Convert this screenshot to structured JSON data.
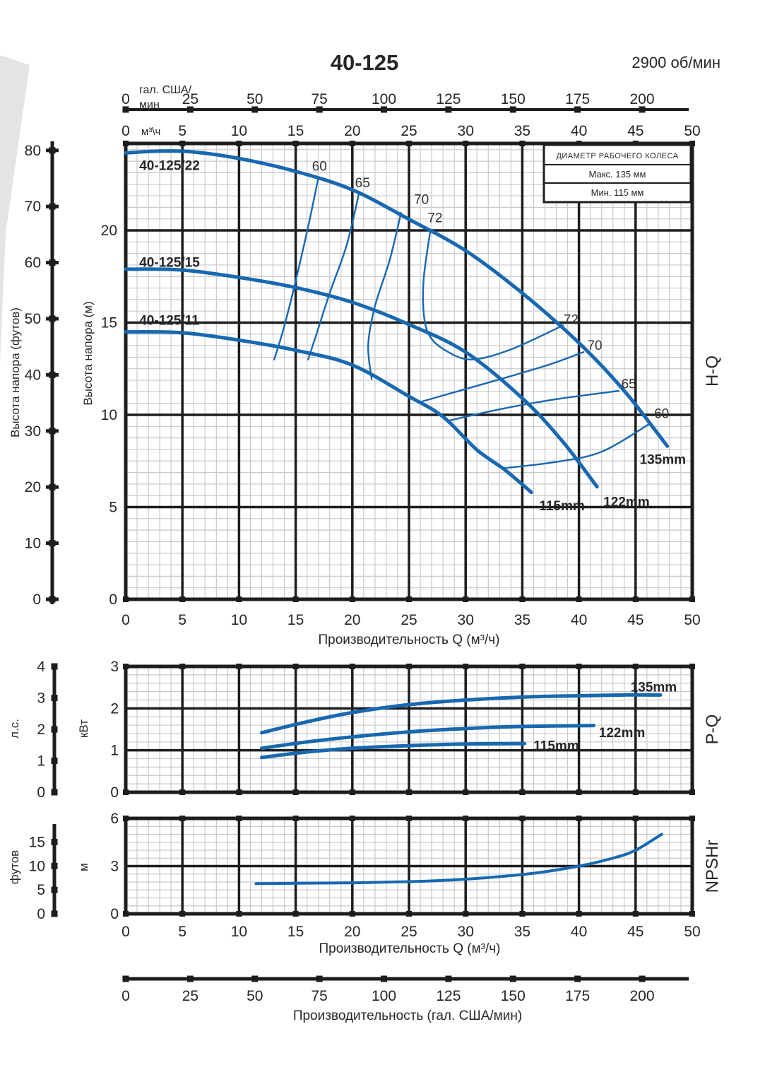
{
  "header": {
    "title": "40-125",
    "rpm": "2900 об/мин"
  },
  "impeller_box": {
    "title": "ДИАМЕТР РАБОЧЕГО КОЛЕСА",
    "max": "Макс. 135 мм",
    "min": "Мин. 115 мм"
  },
  "colors": {
    "curve_blue": "#1768b0",
    "ink": "#262626",
    "grid_minor": "#c9c9c9",
    "grid_major": "#1d1d1d",
    "wedge_gray": "#e4e4e6"
  },
  "labels": {
    "hq_right": "H-Q",
    "pq_right": "P-Q",
    "npsh_right": "NPSHr",
    "hq_feet": "Высота напора (футов)",
    "hq_m": "Высота напора (м)",
    "pq_hp": "л.с.",
    "pq_kw": "кВт",
    "npsh_feet": "футов",
    "npsh_m": "м",
    "q_axis_title": "Производительность Q (м³/ч)",
    "gal_axis_title": "Производительность (гал. США/мин)"
  },
  "axes": {
    "gal": {
      "unit_line1": "гал. США/",
      "unit_line2": "мин",
      "ticks": [
        0,
        25,
        50,
        75,
        100,
        125,
        150,
        175,
        200
      ]
    },
    "m3h_header": {
      "unit": "м³\\ч",
      "ticks": [
        0,
        5,
        10,
        15,
        20,
        25,
        30,
        35,
        40,
        45,
        50
      ]
    },
    "q_ticks": [
      0,
      5,
      10,
      15,
      20,
      25,
      30,
      35,
      40,
      45,
      50
    ],
    "hq_m_ticks": [
      0,
      5,
      10,
      15,
      20
    ],
    "hq_feet_ticks": [
      0,
      10,
      20,
      30,
      40,
      50,
      60,
      70,
      80
    ],
    "pq_kw_ticks": [
      0,
      1,
      2,
      3
    ],
    "pq_hp_ticks": [
      0,
      1,
      2,
      3,
      4
    ],
    "npsh_m_ticks": [
      0,
      3,
      6
    ],
    "npsh_feet_ticks": [
      0,
      5,
      10,
      15
    ]
  },
  "chart_data": [
    {
      "type": "line",
      "title": "H-Q",
      "xlabel": "Производительность Q (м³/ч)",
      "ylabel": "Высота напора (м)",
      "xlim": [
        0,
        50
      ],
      "ylim": [
        0,
        24.7
      ],
      "series": [
        {
          "name": "40-125/22 (135 мм)",
          "role": "pump-curve",
          "width": "thick",
          "points": [
            [
              0,
              24.2
            ],
            [
              3,
              24.3
            ],
            [
              6,
              24.25
            ],
            [
              10,
              23.9
            ],
            [
              15,
              23.2
            ],
            [
              20,
              22.2
            ],
            [
              25,
              20.6
            ],
            [
              30,
              18.9
            ],
            [
              35,
              16.6
            ],
            [
              40,
              13.9
            ],
            [
              44,
              11.3
            ],
            [
              47.8,
              8.3
            ]
          ]
        },
        {
          "name": "40-125/15 (122 мм)",
          "role": "pump-curve",
          "width": "thick",
          "points": [
            [
              0,
              17.9
            ],
            [
              5,
              17.85
            ],
            [
              10,
              17.45
            ],
            [
              15,
              16.9
            ],
            [
              20,
              16.1
            ],
            [
              25,
              14.9
            ],
            [
              30,
              13.4
            ],
            [
              35,
              10.9
            ],
            [
              38.5,
              8.6
            ],
            [
              41.6,
              6.1
            ]
          ]
        },
        {
          "name": "40-125/11 (115 мм)",
          "role": "pump-curve",
          "width": "thick",
          "points": [
            [
              0,
              14.5
            ],
            [
              5,
              14.45
            ],
            [
              10,
              14.05
            ],
            [
              15,
              13.5
            ],
            [
              20,
              12.7
            ],
            [
              25,
              11.0
            ],
            [
              28,
              9.9
            ],
            [
              31,
              8.1
            ],
            [
              33.5,
              7.0
            ],
            [
              35.8,
              5.8
            ]
          ]
        },
        {
          "name": "КПД 60% левая ветвь",
          "role": "efficiency-line",
          "width": "thin",
          "points": [
            [
              17.0,
              22.85
            ],
            [
              16.1,
              20.2
            ],
            [
              14.9,
              17.0
            ],
            [
              13.9,
              14.6
            ],
            [
              13.1,
              13.0
            ]
          ]
        },
        {
          "name": "КПД 65% левая ветвь",
          "role": "efficiency-line",
          "width": "thin",
          "points": [
            [
              20.6,
              22.05
            ],
            [
              19.5,
              19.2
            ],
            [
              18.0,
              16.6
            ],
            [
              16.9,
              14.5
            ],
            [
              16.1,
              13.0
            ]
          ]
        },
        {
          "name": "КПД 70% левая ветвь",
          "role": "efficiency-line",
          "width": "thin",
          "points": [
            [
              24.3,
              20.95
            ],
            [
              23.3,
              18.4
            ],
            [
              22.0,
              15.9
            ],
            [
              21.4,
              13.8
            ],
            [
              21.7,
              11.95
            ]
          ]
        },
        {
          "name": "КПД 72% контур",
          "role": "efficiency-line",
          "width": "thin",
          "points": [
            [
              26.9,
              20.05
            ],
            [
              26.3,
              17.4
            ],
            [
              26.3,
              15.5
            ],
            [
              26.8,
              14.3
            ],
            [
              28.2,
              13.5
            ],
            [
              30.5,
              13.0
            ],
            [
              34,
              13.55
            ],
            [
              38.6,
              14.85
            ]
          ]
        },
        {
          "name": "КПД 70% правая ветвь",
          "role": "efficiency-line",
          "width": "thin",
          "points": [
            [
              26.0,
              10.7
            ],
            [
              30,
              11.4
            ],
            [
              34,
              12.1
            ],
            [
              37.5,
              12.75
            ],
            [
              40.4,
              13.4
            ]
          ]
        },
        {
          "name": "КПД 65% правая ветвь",
          "role": "efficiency-line",
          "width": "thin",
          "points": [
            [
              28.6,
              9.7
            ],
            [
              33,
              10.3
            ],
            [
              38,
              10.85
            ],
            [
              43.5,
              11.3
            ]
          ]
        },
        {
          "name": "КПД 60% правая ветвь",
          "role": "efficiency-line",
          "width": "thin",
          "points": [
            [
              33.3,
              7.1
            ],
            [
              38,
              7.45
            ],
            [
              42,
              8.0
            ],
            [
              46.2,
              9.5
            ]
          ]
        }
      ],
      "annotations": [
        {
          "text": "40-125/22",
          "x": 1.2,
          "y": 23.55,
          "anchor": "start",
          "bold": true
        },
        {
          "text": "40-125/15",
          "x": 1.2,
          "y": 18.3,
          "anchor": "start",
          "bold": true
        },
        {
          "text": "40-125/11",
          "x": 1.2,
          "y": 15.15,
          "anchor": "start",
          "bold": true
        },
        {
          "text": "135mm",
          "x": 47.4,
          "y": 7.6,
          "bold": true
        },
        {
          "text": "122mm",
          "x": 44.2,
          "y": 5.3,
          "bold": true
        },
        {
          "text": "115mm",
          "x": 38.5,
          "y": 5.1,
          "bold": true
        },
        {
          "text": "60",
          "x": 17.1,
          "y": 23.5
        },
        {
          "text": "65",
          "x": 20.9,
          "y": 22.6
        },
        {
          "text": "70",
          "x": 26.1,
          "y": 21.7
        },
        {
          "text": "72",
          "x": 27.3,
          "y": 20.7
        },
        {
          "text": "72",
          "x": 39.3,
          "y": 15.2
        },
        {
          "text": "70",
          "x": 41.4,
          "y": 13.8
        },
        {
          "text": "65",
          "x": 44.4,
          "y": 11.7
        },
        {
          "text": "60",
          "x": 47.3,
          "y": 10.1
        }
      ]
    },
    {
      "type": "line",
      "title": "P-Q",
      "xlabel": "Производительность Q (м³/ч)",
      "ylabel": "кВт",
      "xlim": [
        0,
        50
      ],
      "ylim": [
        0,
        3
      ],
      "series": [
        {
          "name": "P 135 мм",
          "role": "power-curve",
          "width": "thick",
          "points": [
            [
              12,
              1.42
            ],
            [
              16,
              1.68
            ],
            [
              20,
              1.9
            ],
            [
              25,
              2.09
            ],
            [
              30,
              2.2
            ],
            [
              35,
              2.27
            ],
            [
              40,
              2.3
            ],
            [
              44,
              2.32
            ],
            [
              47.2,
              2.32
            ]
          ]
        },
        {
          "name": "P 122 мм",
          "role": "power-curve",
          "width": "thick",
          "points": [
            [
              12,
              1.05
            ],
            [
              16,
              1.2
            ],
            [
              20,
              1.32
            ],
            [
              25,
              1.44
            ],
            [
              30,
              1.52
            ],
            [
              35,
              1.57
            ],
            [
              41.3,
              1.59
            ]
          ]
        },
        {
          "name": "P 115 мм",
          "role": "power-curve",
          "width": "thick",
          "points": [
            [
              12,
              0.83
            ],
            [
              16,
              0.96
            ],
            [
              20,
              1.05
            ],
            [
              25,
              1.11
            ],
            [
              30,
              1.15
            ],
            [
              35.2,
              1.16
            ]
          ]
        }
      ],
      "annotations": [
        {
          "text": "135mm",
          "x": 46.6,
          "y": 2.52,
          "bold": true
        },
        {
          "text": "122mm",
          "x": 43.8,
          "y": 1.43,
          "bold": true
        },
        {
          "text": "115mm",
          "x": 38.0,
          "y": 1.12,
          "bold": true
        }
      ]
    },
    {
      "type": "line",
      "title": "NPSHr",
      "xlabel": "Производительность Q (м³/ч)",
      "ylabel": "м",
      "xlim": [
        0,
        50
      ],
      "ylim": [
        0,
        6
      ],
      "series": [
        {
          "name": "NPSHr",
          "role": "npsh-curve",
          "width": "medium",
          "points": [
            [
              11.5,
              1.9
            ],
            [
              15,
              1.92
            ],
            [
              20,
              1.95
            ],
            [
              25,
              2.02
            ],
            [
              28,
              2.1
            ],
            [
              32,
              2.28
            ],
            [
              36,
              2.55
            ],
            [
              40,
              3.0
            ],
            [
              43,
              3.5
            ],
            [
              45,
              4.0
            ],
            [
              47.3,
              5.0
            ]
          ]
        }
      ],
      "annotations": []
    }
  ]
}
